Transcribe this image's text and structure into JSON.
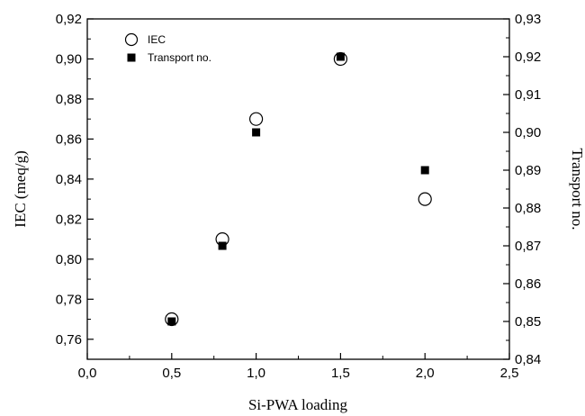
{
  "chart_data": {
    "type": "scatter",
    "xlabel": "Si-PWA loading",
    "ylabel": "IEC (meq/g)",
    "y2label": "Transport no.",
    "xlim": [
      0.0,
      2.5
    ],
    "ylim": [
      0.75,
      0.92
    ],
    "y2lim": [
      0.84,
      0.93
    ],
    "x_ticks": [
      "0,0",
      "0,5",
      "1,0",
      "1,5",
      "2,0",
      "2,5"
    ],
    "y_ticks": [
      "0,76",
      "0,78",
      "0,80",
      "0,82",
      "0,84",
      "0,86",
      "0,88",
      "0,90",
      "0,92"
    ],
    "y2_ticks": [
      "0,84",
      "0,85",
      "0,86",
      "0,87",
      "0,88",
      "0,89",
      "0,90",
      "0,91",
      "0,92",
      "0,93"
    ],
    "grid": false,
    "legend_position": "top-left",
    "series": [
      {
        "name": "IEC",
        "axis": "left",
        "marker": "open-circle",
        "x": [
          0.5,
          0.8,
          1.0,
          1.5,
          2.0
        ],
        "y": [
          0.77,
          0.81,
          0.87,
          0.9,
          0.83
        ]
      },
      {
        "name": "Transport no.",
        "axis": "right",
        "marker": "filled-square",
        "x": [
          0.5,
          0.8,
          1.0,
          1.5,
          2.0
        ],
        "y": [
          0.85,
          0.87,
          0.9,
          0.92,
          0.89
        ]
      }
    ]
  }
}
